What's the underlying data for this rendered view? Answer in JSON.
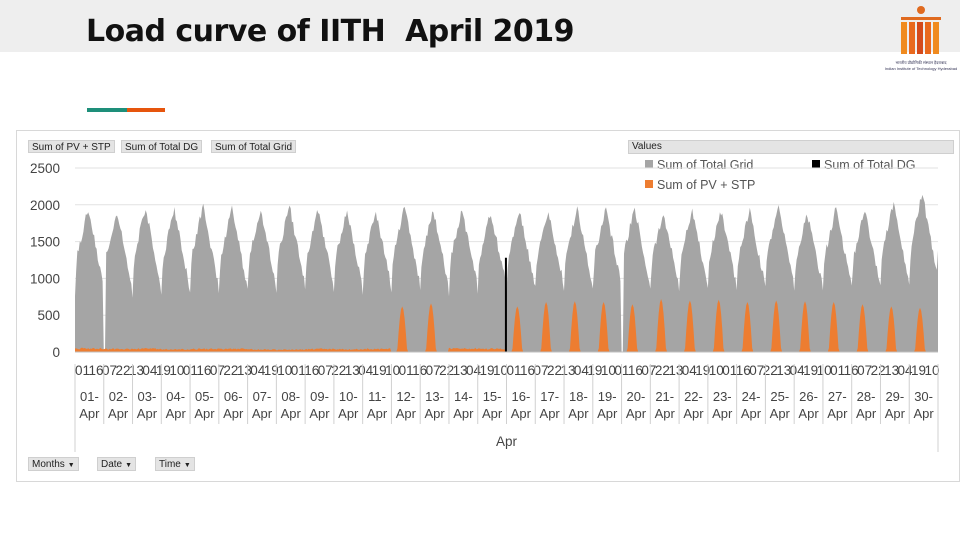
{
  "slide": {
    "title": "Load curve of IITH  April 2019",
    "logo_text_line1": "भारतीय प्रौद्योगिकी संस्थान हैदराबाद",
    "logo_text_line2": "Indian Institute of Technology Hyderabad",
    "accent_colors": [
      "#1e8f7a",
      "#e6550d"
    ]
  },
  "pivot": {
    "value_fields": [
      "Sum of PV + STP",
      "Sum of Total DG",
      "Sum of Total Grid"
    ],
    "values_label": "Values",
    "filters": [
      {
        "label": "Months",
        "icon": "filter-dropdown-icon"
      },
      {
        "label": "Date",
        "icon": "filter-dropdown-icon"
      },
      {
        "label": "Time",
        "icon": "dropdown-arrow-icon"
      }
    ]
  },
  "chart_data": {
    "type": "area",
    "title": "",
    "xlabel": "Apr",
    "ylabel": "",
    "ylim": [
      0,
      2500
    ],
    "yticks": [
      0,
      500,
      1000,
      1500,
      2000,
      2500
    ],
    "grid": true,
    "legend_position": "top-right",
    "legend": [
      {
        "name": "Sum of Total Grid",
        "color": "#a5a5a5"
      },
      {
        "name": "Sum of Total DG",
        "color": "#000000"
      },
      {
        "name": "Sum of PV + STP",
        "color": "#ed7d31"
      }
    ],
    "month": "Apr",
    "days": [
      "01-Apr",
      "02-Apr",
      "03-Apr",
      "04-Apr",
      "05-Apr",
      "06-Apr",
      "07-Apr",
      "08-Apr",
      "09-Apr",
      "10-Apr",
      "11-Apr",
      "12-Apr",
      "13-Apr",
      "14-Apr",
      "15-Apr",
      "16-Apr",
      "17-Apr",
      "18-Apr",
      "19-Apr",
      "20-Apr",
      "21-Apr",
      "22-Apr",
      "23-Apr",
      "24-Apr",
      "25-Apr",
      "26-Apr",
      "27-Apr",
      "28-Apr",
      "29-Apr",
      "30-Apr"
    ],
    "day_label_top": [
      "01-",
      "02-",
      "03-",
      "04-",
      "05-",
      "06-",
      "07-",
      "08-",
      "09-",
      "10-",
      "11-",
      "12-",
      "13-",
      "14-",
      "15-",
      "16-",
      "17-",
      "18-",
      "19-",
      "20-",
      "21-",
      "22-",
      "23-",
      "24-",
      "25-",
      "26-",
      "27-",
      "28-",
      "29-",
      "30-"
    ],
    "day_label_bottom": [
      "Apr",
      "Apr",
      "Apr",
      "Apr",
      "Apr",
      "Apr",
      "Apr",
      "Apr",
      "Apr",
      "Apr",
      "Apr",
      "Apr",
      "Apr",
      "Apr",
      "Apr",
      "Apr",
      "Apr",
      "Apr",
      "Apr",
      "Apr",
      "Apr",
      "Apr",
      "Apr",
      "Apr",
      "Apr",
      "Apr",
      "Apr",
      "Apr",
      "Apr",
      "Apr"
    ],
    "hour_ticks": [
      "01",
      "16",
      "07",
      "22",
      "13",
      "04",
      "19",
      "10",
      "01",
      "16",
      "07",
      "22",
      "13",
      "04",
      "19",
      "10",
      "01",
      "16",
      "07",
      "22",
      "13",
      "04",
      "19",
      "10",
      "01",
      "16",
      "07",
      "22",
      "13",
      "04",
      "19",
      "10",
      "01",
      "16",
      "07",
      "22",
      "13",
      "04",
      "19",
      "10",
      "01",
      "16",
      "07",
      "22",
      "13",
      "04",
      "19",
      "10",
      "01",
      "16",
      "07",
      "22",
      "13",
      "04",
      "19",
      "10",
      "01",
      "16",
      "07",
      "22",
      "13",
      "04",
      "19",
      "10"
    ],
    "series": [
      {
        "name": "Sum of Total Grid",
        "color": "#a5a5a5",
        "daily_peak": [
          1950,
          1930,
          1980,
          1960,
          1990,
          1950,
          1930,
          1990,
          1960,
          1950,
          1920,
          1970,
          1950,
          1940,
          1900,
          1950,
          1920,
          1960,
          1950,
          1970,
          1910,
          1950,
          1930,
          1920,
          1980,
          1900,
          1950,
          1930,
          2030,
          2170
        ],
        "daily_low": [
          620,
          600,
          580,
          560,
          620,
          600,
          650,
          640,
          630,
          620,
          640,
          650,
          600,
          620,
          640,
          620,
          660,
          640,
          650,
          620,
          640,
          620,
          660,
          640,
          650,
          620,
          640,
          650,
          660,
          680
        ],
        "gap_day_indices": [
          1,
          19
        ]
      },
      {
        "name": "Sum of Total DG",
        "color": "#000000",
        "spike_day": "16-Apr",
        "spike_value": 1280
      },
      {
        "name": "Sum of PV + STP",
        "color": "#ed7d31",
        "daily_peak": [
          60,
          50,
          55,
          45,
          50,
          55,
          45,
          40,
          50,
          45,
          50,
          620,
          660,
          60,
          55,
          620,
          680,
          690,
          680,
          650,
          720,
          700,
          710,
          680,
          700,
          690,
          680,
          650,
          620,
          600
        ]
      }
    ]
  }
}
